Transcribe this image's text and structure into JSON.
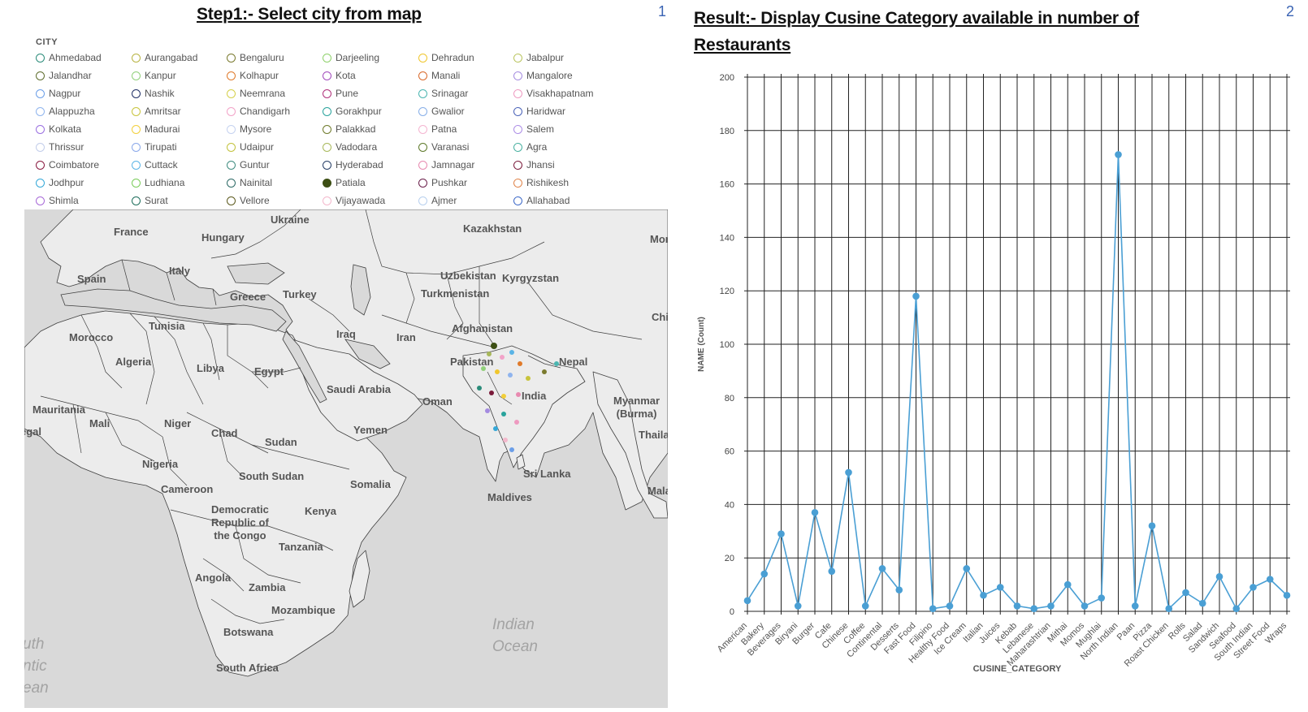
{
  "panel1": {
    "title": "Step1:- Select city from map",
    "number": "1"
  },
  "panel2": {
    "title": "Result:- Display Cusine  Category available in number of Restaurants",
    "number": "2"
  },
  "legend": {
    "header": "CITY",
    "items": [
      {
        "name": "Ahmedabad",
        "color": "#2b8c7a"
      },
      {
        "name": "Aurangabad",
        "color": "#b7b342"
      },
      {
        "name": "Bengaluru",
        "color": "#7a7a2e"
      },
      {
        "name": "Darjeeling",
        "color": "#8fd16b"
      },
      {
        "name": "Dehradun",
        "color": "#f0c62c"
      },
      {
        "name": "Jabalpur",
        "color": "#b9c45e"
      },
      {
        "name": "Jalandhar",
        "color": "#5f6e2e"
      },
      {
        "name": "Kanpur",
        "color": "#90d07a"
      },
      {
        "name": "Kolhapur",
        "color": "#e07a2a"
      },
      {
        "name": "Kota",
        "color": "#a24bbd"
      },
      {
        "name": "Manali",
        "color": "#d9692a"
      },
      {
        "name": "Mangalore",
        "color": "#a48be0"
      },
      {
        "name": "Nagpur",
        "color": "#6b9ee8"
      },
      {
        "name": "Nashik",
        "color": "#1f2f66"
      },
      {
        "name": "Neemrana",
        "color": "#d5d04a"
      },
      {
        "name": "Pune",
        "color": "#b0307a"
      },
      {
        "name": "Srinagar",
        "color": "#4bb5b0"
      },
      {
        "name": "Visakhapatnam",
        "color": "#ee9ac0"
      },
      {
        "name": "Alappuzha",
        "color": "#8fb4ee"
      },
      {
        "name": "Amritsar",
        "color": "#c8c43c"
      },
      {
        "name": "Chandigarh",
        "color": "#f2a3c8"
      },
      {
        "name": "Gorakhpur",
        "color": "#29a39c"
      },
      {
        "name": "Gwalior",
        "color": "#86aee8"
      },
      {
        "name": "Haridwar",
        "color": "#4a62b8"
      },
      {
        "name": "Kolkata",
        "color": "#9a6fe0"
      },
      {
        "name": "Madurai",
        "color": "#f2cf3a"
      },
      {
        "name": "Mysore",
        "color": "#c5d2f0"
      },
      {
        "name": "Palakkad",
        "color": "#6f7a2a"
      },
      {
        "name": "Patna",
        "color": "#f4b4d0"
      },
      {
        "name": "Salem",
        "color": "#ac8de6"
      },
      {
        "name": "Thrissur",
        "color": "#c2cdea"
      },
      {
        "name": "Tirupati",
        "color": "#8aa8ea"
      },
      {
        "name": "Udaipur",
        "color": "#c2c23c"
      },
      {
        "name": "Vadodara",
        "color": "#a8b85a"
      },
      {
        "name": "Varanasi",
        "color": "#5e7a2a"
      },
      {
        "name": "Agra",
        "color": "#48b0a0"
      },
      {
        "name": "Coimbatore",
        "color": "#8a1a40"
      },
      {
        "name": "Cuttack",
        "color": "#5ab4e6"
      },
      {
        "name": "Guntur",
        "color": "#3f8c80"
      },
      {
        "name": "Hyderabad",
        "color": "#263e66"
      },
      {
        "name": "Jamnagar",
        "color": "#e88ab0"
      },
      {
        "name": "Jhansi",
        "color": "#7a1a3a"
      },
      {
        "name": "Jodhpur",
        "color": "#35a8d8"
      },
      {
        "name": "Ludhiana",
        "color": "#7acc5a"
      },
      {
        "name": "Nainital",
        "color": "#2d6a66"
      },
      {
        "name": "Patiala",
        "color": "#3d4f14",
        "filled": true
      },
      {
        "name": "Pushkar",
        "color": "#6a1f4a"
      },
      {
        "name": "Rishikesh",
        "color": "#e0844a"
      },
      {
        "name": "Shimla",
        "color": "#a86ad8"
      },
      {
        "name": "Surat",
        "color": "#1e6e5c"
      },
      {
        "name": "Vellore",
        "color": "#5c5a1e"
      },
      {
        "name": "Vijayawada",
        "color": "#f4b8cc"
      },
      {
        "name": "Ajmer",
        "color": "#b8d0ee"
      },
      {
        "name": "Allahabad",
        "color": "#3c68c8"
      }
    ]
  },
  "map": {
    "land_color": "#ececec",
    "water_color": "#d9d9d9",
    "border_color": "#3f3f3f",
    "labels": [
      "France",
      "Hungary",
      "Ukraine",
      "Kazakhstan",
      "Mongo",
      "Spain",
      "Italy",
      "Greece",
      "Turkey",
      "Uzbekistan",
      "Kyrgyzstan",
      "Turkmenistan",
      "China",
      "Morocco",
      "Tunisia",
      "Iraq",
      "Iran",
      "Afghanistan",
      "Algeria",
      "Libya",
      "Egypt",
      "Pakistan",
      "Nepal",
      "Saudi Arabia",
      "Oman",
      "India",
      "Myanmar\n(Burma)",
      "Mauritania",
      "Mali",
      "Niger",
      "Chad",
      "Yemen",
      "Sudan",
      "Thailand",
      "egal",
      "Nigeria",
      "South Sudan",
      "Sri Lanka",
      "Cameroon",
      "Somalia",
      "Maldives",
      "Malaysi",
      "Democratic\nRepublic of\nthe Congo",
      "Kenya",
      "Tanzania",
      "Angola",
      "Zambia",
      "Mozambique",
      "Botswana",
      "South Africa"
    ],
    "ocean_labels": [
      "Indian\nOcean",
      "uth\nntic\nean"
    ]
  },
  "chart_data": {
    "type": "line",
    "title": "",
    "xlabel": "CUSINE_CATEGORY",
    "ylabel": "NAME (Count)",
    "ylim": [
      0,
      200
    ],
    "yticks": [
      0,
      20,
      40,
      60,
      80,
      100,
      120,
      140,
      160,
      180,
      200
    ],
    "grid": true,
    "line_color": "#4a9fd4",
    "categories": [
      "American",
      "Bakery",
      "Beverages",
      "Biryani",
      "Burger",
      "Cafe",
      "Chinese",
      "Coffee",
      "Continental",
      "Desserts",
      "Fast Food",
      "Filipino",
      "Healthy Food",
      "Ice Cream",
      "Italian",
      "Juices",
      "Kebab",
      "Lebanese",
      "Maharashtrian",
      "Mithai",
      "Momos",
      "Mughlai",
      "North Indian",
      "Paan",
      "Pizza",
      "Roast Chicken",
      "Rolls",
      "Salad",
      "Sandwich",
      "Seafood",
      "South Indian",
      "Street Food",
      "Wraps"
    ],
    "values": [
      4,
      14,
      29,
      2,
      37,
      15,
      52,
      2,
      16,
      8,
      118,
      1,
      2,
      16,
      6,
      9,
      2,
      1,
      2,
      10,
      2,
      5,
      171,
      2,
      32,
      1,
      7,
      3,
      13,
      1,
      9,
      12,
      6
    ]
  }
}
